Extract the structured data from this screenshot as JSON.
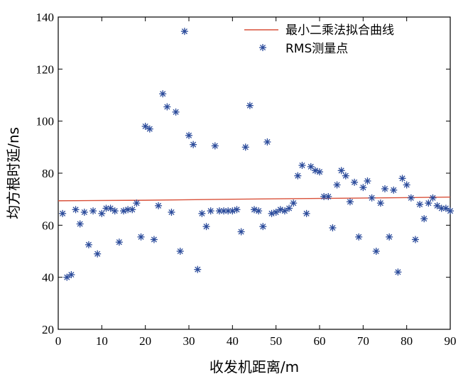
{
  "chart_data": {
    "type": "scatter",
    "xlabel": "收发机距离/m",
    "ylabel": "均方根时延/ns",
    "xlim": [
      0,
      90
    ],
    "ylim": [
      20,
      140
    ],
    "xticks": [
      0,
      10,
      20,
      30,
      40,
      50,
      60,
      70,
      80,
      90
    ],
    "yticks": [
      20,
      40,
      60,
      80,
      100,
      120,
      140
    ],
    "grid": false,
    "legend_position": "top-right",
    "fit_line": {
      "name": "最小二乘法拟合曲线",
      "color": "#d9513a",
      "x": [
        0,
        20,
        40,
        60,
        80,
        90
      ],
      "y": [
        69.4,
        69.6,
        70.0,
        70.3,
        70.6,
        70.8
      ]
    },
    "scatter": {
      "name": "RMS测量点",
      "color": "#2b4b9b",
      "x": [
        1,
        2,
        3,
        4,
        5,
        6,
        7,
        8,
        9,
        10,
        11,
        12,
        13,
        14,
        15,
        16,
        17,
        18,
        19,
        20,
        21,
        22,
        23,
        24,
        25,
        26,
        27,
        28,
        29,
        30,
        31,
        32,
        33,
        34,
        35,
        36,
        37,
        38,
        39,
        40,
        41,
        42,
        43,
        44,
        45,
        46,
        47,
        48,
        49,
        50,
        51,
        52,
        53,
        54,
        55,
        56,
        57,
        58,
        59,
        60,
        61,
        62,
        63,
        64,
        65,
        66,
        67,
        68,
        69,
        70,
        71,
        72,
        73,
        74,
        75,
        76,
        77,
        78,
        79,
        80,
        81,
        82,
        83,
        84,
        85,
        86,
        87,
        88,
        89,
        90
      ],
      "y": [
        64.5,
        40,
        41,
        66,
        60.5,
        65,
        52.5,
        65.5,
        49,
        64.5,
        66.5,
        66.5,
        65.5,
        53.5,
        65.5,
        66,
        66,
        68.5,
        55.5,
        98,
        97,
        54.5,
        67.5,
        110.5,
        105.5,
        65,
        103.5,
        50,
        134.5,
        94.5,
        91,
        43,
        64.5,
        59.5,
        65.5,
        90.5,
        65.5,
        65.5,
        65.5,
        65.5,
        66,
        57.5,
        90,
        106,
        66,
        65.5,
        59.5,
        92,
        64.5,
        65,
        66,
        65.5,
        66.5,
        68.5,
        79,
        83,
        64.5,
        82.5,
        81,
        80.5,
        71,
        71,
        59,
        75.5,
        81,
        79,
        69,
        76.5,
        55.5,
        74.5,
        77,
        70.5,
        50,
        68.5,
        74,
        55.5,
        73.5,
        42,
        78,
        75.5,
        70.5,
        54.5,
        68,
        62.5,
        68.5,
        70.5,
        67.5,
        66.5,
        66.5,
        65.5
      ]
    }
  }
}
